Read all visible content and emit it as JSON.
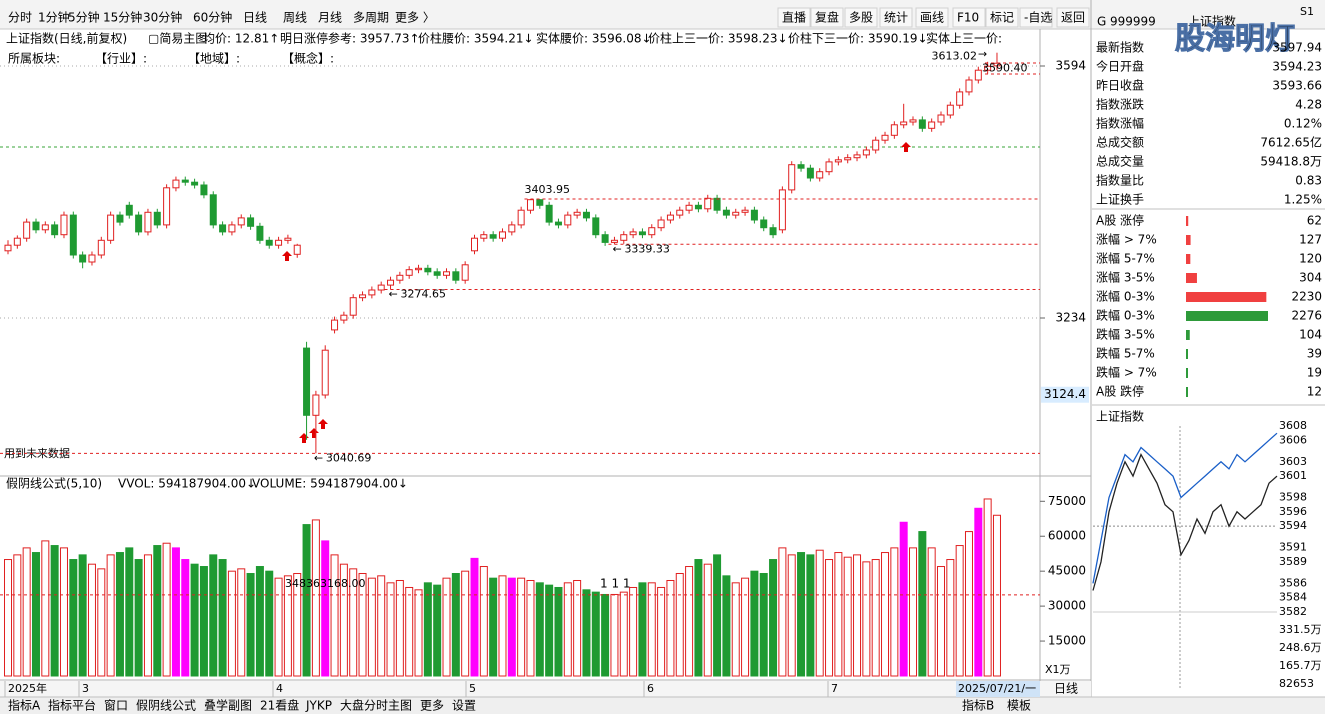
{
  "toolbar": {
    "periods": [
      "分时",
      "1分钟",
      "5分钟",
      "15分钟",
      "30分钟",
      "60分钟",
      "日线",
      "周线",
      "月线",
      "多周期",
      "更多 〉"
    ],
    "active_period": "日线",
    "tools": [
      "直播",
      "复盘",
      "多股",
      "统计",
      "画线",
      "F10",
      "标记",
      "-自选",
      "返回"
    ]
  },
  "quote_header": {
    "prefix": "G",
    "code": "999999",
    "name": "上证指数",
    "watermark": "股海明灯",
    "badge": "S1"
  },
  "info_line": [
    {
      "text": "上证指数(日线,前复权)",
      "color": "#000000"
    },
    {
      "text": "▢简易主图",
      "color": "#000000"
    },
    {
      "text": "均价: 12.81↑",
      "color": "#d40000"
    },
    {
      "text": "明日涨停参考: 3957.73↑",
      "color": "#d40000"
    },
    {
      "text": "价柱腰价: 3594.21↓",
      "color": "#d40000"
    },
    {
      "text": "实体腰价: 3596.08↓",
      "color": "#d40000"
    },
    {
      "text": "价柱上三一价: 3598.23↓",
      "color": "#d40000"
    },
    {
      "text": "价柱下三一价: 3590.19↓",
      "color": "#d40000"
    },
    {
      "text": "实体上三一价:",
      "color": "#d40000"
    }
  ],
  "sector_line": [
    "所属板块:",
    "【行业】:",
    "【地域】:",
    "【概念】:"
  ],
  "main_chart": {
    "type": "candlestick",
    "up_color": "#e02020",
    "down_color": "#1f9a32",
    "yticks": [
      3594,
      3234
    ],
    "cursor_price": 3124.4,
    "note": "用到未来数据",
    "annotations": [
      {
        "value": 3403.95,
        "dashed_line": true
      },
      {
        "value": 3339.33,
        "dashed_line": true
      },
      {
        "value": 3274.65,
        "dashed_line": true
      },
      {
        "value": 3040.69,
        "dashed_line": true
      },
      {
        "value": 3613.02,
        "dashed_line": false
      },
      {
        "value": 3590.4,
        "label": "3590.40",
        "dashed_line": false
      }
    ],
    "candles": [
      [
        3330,
        3345,
        3325,
        3338
      ],
      [
        3338,
        3352,
        3333,
        3348
      ],
      [
        3348,
        3376,
        3343,
        3371
      ],
      [
        3371,
        3376,
        3355,
        3360
      ],
      [
        3360,
        3372,
        3355,
        3367
      ],
      [
        3367,
        3372,
        3348,
        3353
      ],
      [
        3353,
        3386,
        3348,
        3381
      ],
      [
        3381,
        3386,
        3319,
        3324
      ],
      [
        3324,
        3329,
        3305,
        3314
      ],
      [
        3314,
        3329,
        3309,
        3324
      ],
      [
        3324,
        3350,
        3319,
        3345
      ],
      [
        3345,
        3386,
        3340,
        3381
      ],
      [
        3381,
        3386,
        3366,
        3371
      ],
      [
        3395,
        3400,
        3376,
        3381
      ],
      [
        3381,
        3386,
        3352,
        3357
      ],
      [
        3357,
        3390,
        3352,
        3385
      ],
      [
        3385,
        3390,
        3362,
        3367
      ],
      [
        3367,
        3425,
        3362,
        3420
      ],
      [
        3420,
        3436,
        3415,
        3431
      ],
      [
        3431,
        3436,
        3423,
        3428
      ],
      [
        3428,
        3433,
        3419,
        3424
      ],
      [
        3424,
        3429,
        3405,
        3410
      ],
      [
        3410,
        3415,
        3362,
        3367
      ],
      [
        3367,
        3372,
        3352,
        3357
      ],
      [
        3357,
        3372,
        3352,
        3367
      ],
      [
        3367,
        3382,
        3362,
        3377
      ],
      [
        3377,
        3382,
        3360,
        3365
      ],
      [
        3365,
        3370,
        3340,
        3345
      ],
      [
        3345,
        3350,
        3333,
        3338
      ],
      [
        3338,
        3350,
        3333,
        3345
      ],
      [
        3345,
        3353,
        3340,
        3348
      ],
      [
        3325,
        3340,
        3320,
        3338
      ],
      [
        3191,
        3200,
        3060,
        3095
      ],
      [
        3095,
        3130,
        3040.69,
        3124
      ],
      [
        3124,
        3195,
        3119,
        3188
      ],
      [
        3217,
        3236,
        3212,
        3231
      ],
      [
        3231,
        3243,
        3226,
        3238
      ],
      [
        3238,
        3268,
        3233,
        3263
      ],
      [
        3263,
        3272,
        3258,
        3267
      ],
      [
        3267,
        3279,
        3262,
        3274
      ],
      [
        3274,
        3286,
        3269,
        3281
      ],
      [
        3281,
        3293,
        3274.65,
        3288
      ],
      [
        3288,
        3300,
        3283,
        3295
      ],
      [
        3295,
        3308,
        3290,
        3303
      ],
      [
        3303,
        3310,
        3298,
        3305
      ],
      [
        3305,
        3310,
        3295,
        3300
      ],
      [
        3300,
        3305,
        3290,
        3295
      ],
      [
        3295,
        3305,
        3290,
        3300
      ],
      [
        3300,
        3305,
        3283,
        3288
      ],
      [
        3288,
        3315,
        3283,
        3310
      ],
      [
        3330,
        3353,
        3325,
        3348
      ],
      [
        3348,
        3358,
        3343,
        3353
      ],
      [
        3353,
        3358,
        3343,
        3348
      ],
      [
        3348,
        3362,
        3343,
        3357
      ],
      [
        3357,
        3372,
        3352,
        3367
      ],
      [
        3367,
        3393,
        3362,
        3388
      ],
      [
        3388,
        3403.95,
        3383,
        3403
      ],
      [
        3403,
        3403.95,
        3390,
        3395
      ],
      [
        3395,
        3400,
        3366,
        3371
      ],
      [
        3371,
        3376,
        3362,
        3367
      ],
      [
        3367,
        3386,
        3362,
        3381
      ],
      [
        3381,
        3390,
        3376,
        3385
      ],
      [
        3385,
        3390,
        3372,
        3377
      ],
      [
        3377,
        3382,
        3348,
        3353
      ],
      [
        3353,
        3358,
        3337,
        3342
      ],
      [
        3342,
        3350,
        3339.33,
        3345
      ],
      [
        3345,
        3358,
        3340,
        3353
      ],
      [
        3353,
        3362,
        3348,
        3357
      ],
      [
        3357,
        3362,
        3348,
        3353
      ],
      [
        3353,
        3368,
        3348,
        3363
      ],
      [
        3363,
        3379,
        3358,
        3374
      ],
      [
        3374,
        3386,
        3369,
        3381
      ],
      [
        3381,
        3393,
        3376,
        3388
      ],
      [
        3388,
        3400,
        3383,
        3395
      ],
      [
        3395,
        3400,
        3385,
        3390
      ],
      [
        3390,
        3410,
        3385,
        3405
      ],
      [
        3405,
        3410,
        3383,
        3388
      ],
      [
        3388,
        3393,
        3376,
        3381
      ],
      [
        3381,
        3390,
        3376,
        3385
      ],
      [
        3385,
        3393,
        3380,
        3388
      ],
      [
        3388,
        3393,
        3369,
        3374
      ],
      [
        3374,
        3379,
        3358,
        3363
      ],
      [
        3363,
        3368,
        3348,
        3353
      ],
      [
        3360,
        3422,
        3355,
        3417
      ],
      [
        3417,
        3458,
        3412,
        3453
      ],
      [
        3453,
        3458,
        3443,
        3448
      ],
      [
        3448,
        3453,
        3429,
        3434
      ],
      [
        3434,
        3448,
        3429,
        3443
      ],
      [
        3443,
        3462,
        3438,
        3457
      ],
      [
        3457,
        3465,
        3452,
        3460
      ],
      [
        3460,
        3468,
        3455,
        3463
      ],
      [
        3463,
        3472,
        3458,
        3467
      ],
      [
        3467,
        3479,
        3462,
        3474
      ],
      [
        3474,
        3493,
        3469,
        3488
      ],
      [
        3488,
        3500,
        3483,
        3495
      ],
      [
        3495,
        3515,
        3490,
        3510
      ],
      [
        3510,
        3540,
        3505,
        3514
      ],
      [
        3514,
        3522,
        3509,
        3517
      ],
      [
        3517,
        3522,
        3500,
        3505
      ],
      [
        3505,
        3519,
        3500,
        3514
      ],
      [
        3514,
        3529,
        3509,
        3524
      ],
      [
        3524,
        3543,
        3519,
        3538
      ],
      [
        3538,
        3562,
        3533,
        3557
      ],
      [
        3557,
        3579,
        3552,
        3574
      ],
      [
        3574,
        3593,
        3569,
        3588
      ],
      [
        3588,
        3600,
        3583,
        3593.66
      ],
      [
        3594.23,
        3613.02,
        3588,
        3597.94
      ]
    ],
    "month_labels": [
      "2025年",
      "3",
      "4",
      "5",
      "6",
      "7"
    ],
    "cursor_date": "2025/07/21/一",
    "period_label": "日线"
  },
  "volume_chart": {
    "indicator_line": [
      {
        "text": "假阴线公式(5,10)",
        "color": "#000000"
      },
      {
        "text": "VVOL: 594187904.00↓",
        "color": "#000000"
      },
      {
        "text": "VOLUME: 594187904.00↓",
        "color": "#1a5fc8"
      }
    ],
    "ylim": [
      0,
      85000
    ],
    "yticks": [
      75000,
      60000,
      45000,
      30000,
      15000
    ],
    "unit": "X1万",
    "highlight_color": "#ff00ff",
    "highlight_bars": [
      18,
      19,
      34,
      50,
      54,
      96,
      104
    ],
    "reference": {
      "value": 34836.3168,
      "label": "348363168.00"
    },
    "marker_text": "1 1 1",
    "values": [
      50000,
      52000,
      55000,
      53000,
      58000,
      56000,
      55000,
      50000,
      52000,
      48000,
      46000,
      52000,
      53000,
      55000,
      50000,
      52000,
      56000,
      57000,
      55000,
      50000,
      48000,
      47000,
      52000,
      50000,
      45000,
      46000,
      44000,
      47000,
      45000,
      42000,
      43000,
      44000,
      65000,
      67000,
      58000,
      52000,
      48000,
      46000,
      44000,
      42000,
      43000,
      40000,
      41000,
      38000,
      37000,
      40000,
      39000,
      42000,
      44000,
      45000,
      50500,
      47000,
      42000,
      43000,
      42000,
      42000,
      41000,
      40000,
      39000,
      38000,
      40000,
      41000,
      37000,
      36000,
      35000,
      35000,
      36000,
      38000,
      40000,
      40000,
      38000,
      41000,
      44000,
      47000,
      50000,
      48000,
      52000,
      43000,
      40000,
      42000,
      45000,
      44000,
      50000,
      55000,
      52000,
      53000,
      52000,
      54000,
      50000,
      53000,
      51000,
      52000,
      49000,
      50000,
      53000,
      55000,
      66000,
      55000,
      62000,
      55000,
      47000,
      50000,
      56000,
      62000,
      72000,
      76000,
      69000
    ]
  },
  "stats": [
    {
      "label": "最新指数",
      "value": "3597.94",
      "color": "#e02020"
    },
    {
      "label": "今日开盘",
      "value": "3594.23",
      "color": "#e02020"
    },
    {
      "label": "昨日收盘",
      "value": "3593.66",
      "color": "#000000"
    },
    {
      "label": "指数涨跌",
      "value": "4.28",
      "color": "#e02020"
    },
    {
      "label": "指数涨幅",
      "value": "0.12%",
      "color": "#e02020"
    },
    {
      "label": "总成交额",
      "value": "7612.65亿",
      "color": "#000000"
    },
    {
      "label": "总成交量",
      "value": "59418.8万",
      "color": "#000000"
    },
    {
      "label": "指数量比",
      "value": "0.83",
      "color": "#1f9a32"
    },
    {
      "label": "上证换手",
      "value": "1.25%",
      "color": "#000000"
    }
  ],
  "distribution": {
    "up_color": "#f04040",
    "down_color": "#2e9a3a",
    "rows": [
      {
        "label": "A股 涨停",
        "value": 62,
        "side": "up"
      },
      {
        "label": "涨幅 > 7%",
        "value": 127,
        "side": "up"
      },
      {
        "label": "涨幅 5-7%",
        "value": 120,
        "side": "up"
      },
      {
        "label": "涨幅 3-5%",
        "value": 304,
        "side": "up"
      },
      {
        "label": "涨幅 0-3%",
        "value": 2230,
        "side": "up"
      },
      {
        "label": "跌幅 0-3%",
        "value": 2276,
        "side": "down"
      },
      {
        "label": "跌幅 3-5%",
        "value": 104,
        "side": "down"
      },
      {
        "label": "跌幅 5-7%",
        "value": 39,
        "side": "down"
      },
      {
        "label": "跌幅 > 7%",
        "value": 19,
        "side": "down"
      },
      {
        "label": "A股 跌停",
        "value": 12,
        "side": "down"
      }
    ]
  },
  "intraday": {
    "title": "上证指数",
    "base": 3594,
    "ylim": [
      3582,
      3608
    ],
    "yticks": [
      3608,
      3606,
      3603,
      3601,
      3598,
      3596,
      3594,
      3591,
      3589,
      3586,
      3584,
      3582
    ],
    "price": [
      3585,
      3589,
      3596,
      3600,
      3603,
      3601,
      3604,
      3602,
      3600,
      3597,
      3596,
      3590,
      3592,
      3595,
      3593,
      3596,
      3597,
      3594,
      3596,
      3595,
      3596,
      3597,
      3600,
      3601
    ],
    "avg": [
      3586,
      3592,
      3598,
      3601,
      3604,
      3603,
      3605,
      3604,
      3603,
      3602,
      3601,
      3598,
      3599,
      3600,
      3601,
      3602,
      3603,
      3602,
      3604,
      3603,
      3604,
      3605,
      3606,
      3607
    ],
    "price_color": "#222222",
    "avg_color": "#1a5fc8",
    "volume_labels": [
      "331.5万",
      "248.6万",
      "165.7万",
      "82653"
    ]
  },
  "bottom_tabs": {
    "left": [
      "指标A",
      "指标平台",
      "窗口",
      "假阴线公式",
      "叠学副图",
      "21看盘",
      "JYKP",
      "大盘分时主图",
      "更多",
      "设置"
    ],
    "active": "假阴线公式",
    "right": [
      "指标B",
      "模板"
    ]
  }
}
